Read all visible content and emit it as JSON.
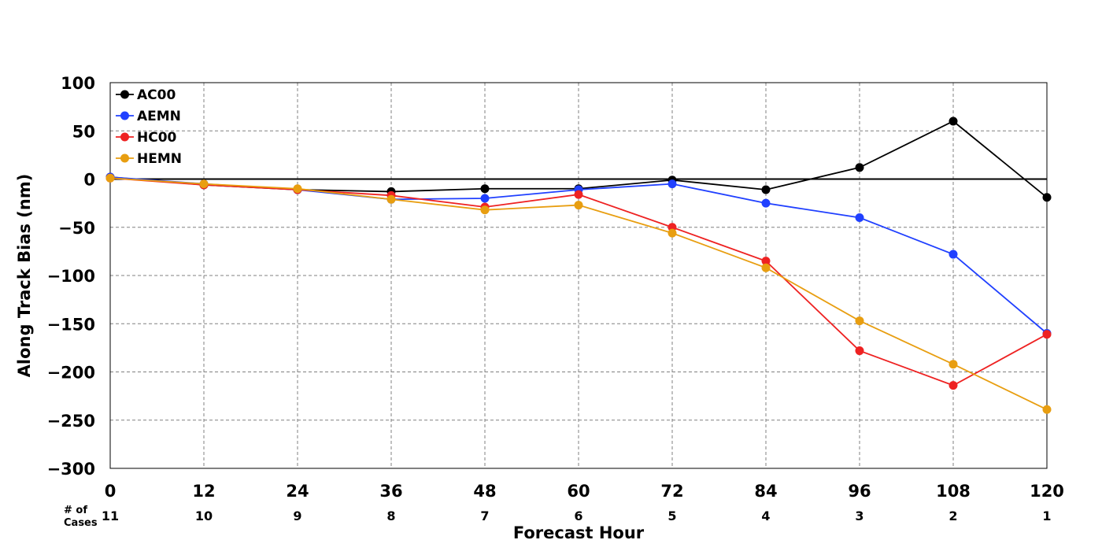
{
  "chart_data": {
    "type": "line",
    "title": "",
    "xlabel": "Forecast Hour",
    "ylabel": "Along Track Bias (nm)",
    "x": [
      0,
      12,
      24,
      36,
      48,
      60,
      72,
      84,
      96,
      108,
      120
    ],
    "xlim": [
      0,
      120
    ],
    "ylim": [
      -300,
      100
    ],
    "x_ticks": [
      0,
      12,
      24,
      36,
      48,
      60,
      72,
      84,
      96,
      108,
      120
    ],
    "y_ticks": [
      100,
      50,
      0,
      -50,
      -100,
      -150,
      -200,
      -250,
      -300
    ],
    "grid": true,
    "zero_line": true,
    "legend_position": "top-left",
    "cases_label_line1": "# of",
    "cases_label_line2": "Cases",
    "cases": [
      11,
      10,
      9,
      8,
      7,
      6,
      5,
      4,
      3,
      2,
      1
    ],
    "series": [
      {
        "name": "AC00",
        "color": "#000000",
        "values": [
          2,
          -6,
          -11,
          -13,
          -10,
          -10,
          -1,
          -11,
          12,
          60,
          -19
        ]
      },
      {
        "name": "AEMN",
        "color": "#2040ff",
        "values": [
          2,
          -5,
          -11,
          -21,
          -20,
          -11,
          -5,
          -25,
          -40,
          -78,
          -160
        ]
      },
      {
        "name": "HC00",
        "color": "#ee2222",
        "values": [
          1,
          -6,
          -11,
          -17,
          -29,
          -16,
          -50,
          -85,
          -178,
          -214,
          -161
        ]
      },
      {
        "name": "HEMN",
        "color": "#e89e10",
        "values": [
          1,
          -5,
          -10,
          -21,
          -32,
          -27,
          -56,
          -92,
          -147,
          -192,
          -239
        ]
      }
    ]
  }
}
